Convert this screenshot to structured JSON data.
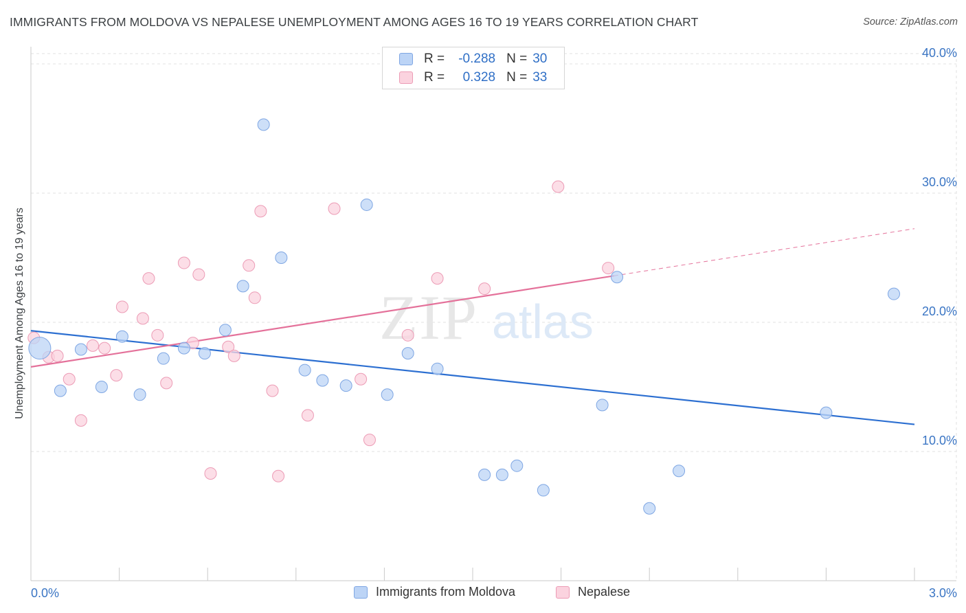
{
  "title": "IMMIGRANTS FROM MOLDOVA VS NEPALESE UNEMPLOYMENT AMONG AGES 16 TO 19 YEARS CORRELATION CHART",
  "source": "Source: ZipAtlas.com",
  "watermark": {
    "zip": "ZIP",
    "atlas": "atlas"
  },
  "legend": {
    "rows": [
      {
        "r_label": "R =",
        "r_value": "-0.288",
        "n_label": "N =",
        "n_value": "30"
      },
      {
        "r_label": "R =",
        "r_value": "0.328",
        "n_label": "N =",
        "n_value": "33"
      }
    ]
  },
  "colors": {
    "blue_fill": "#bcd4f6",
    "blue_stroke": "#7ea6e3",
    "blue_line": "#2c6fd1",
    "pink_fill": "#fbd3df",
    "pink_stroke": "#ec9bb5",
    "pink_line": "#e4719a",
    "grid": "#e2e2e2",
    "tick_text": "#3a75c4"
  },
  "chart_data": {
    "type": "scatter",
    "title": "IMMIGRANTS FROM MOLDOVA VS NEPALESE UNEMPLOYMENT AMONG AGES 16 TO 19 YEARS CORRELATION CHART",
    "xlabel": "",
    "ylabel": "Unemployment Among Ages 16 to 19 years",
    "xlim": [
      0,
      3.0
    ],
    "ylim": [
      0,
      40.8
    ],
    "x_tick_labels": [
      "0.0%",
      "3.0%"
    ],
    "y_ticks": [
      10,
      20,
      30,
      40
    ],
    "y_tick_labels": [
      "10.0%",
      "20.0%",
      "30.0%",
      "40.0%"
    ],
    "grid": true,
    "legend_position": "top-center and bottom",
    "series": [
      {
        "name": "Immigrants from Moldova",
        "points": [
          [
            0.03,
            18.0
          ],
          [
            0.1,
            14.7
          ],
          [
            0.17,
            17.9
          ],
          [
            0.24,
            15.0
          ],
          [
            0.31,
            18.9
          ],
          [
            0.37,
            14.4
          ],
          [
            0.45,
            17.2
          ],
          [
            0.52,
            18.0
          ],
          [
            0.59,
            17.6
          ],
          [
            0.66,
            19.4
          ],
          [
            0.72,
            22.8
          ],
          [
            0.79,
            35.3
          ],
          [
            0.85,
            25.0
          ],
          [
            0.93,
            16.3
          ],
          [
            0.99,
            15.5
          ],
          [
            1.07,
            15.1
          ],
          [
            1.14,
            29.1
          ],
          [
            1.21,
            14.4
          ],
          [
            1.28,
            17.6
          ],
          [
            1.38,
            16.4
          ],
          [
            1.54,
            8.2
          ],
          [
            1.6,
            8.2
          ],
          [
            1.65,
            8.9
          ],
          [
            1.74,
            7.0
          ],
          [
            1.94,
            13.6
          ],
          [
            1.99,
            23.5
          ],
          [
            2.1,
            5.6
          ],
          [
            2.2,
            8.5
          ],
          [
            2.7,
            13.0
          ],
          [
            2.93,
            22.2
          ]
        ],
        "trend": {
          "x": [
            0.0,
            3.0
          ],
          "y": [
            19.35,
            12.1
          ]
        }
      },
      {
        "name": "Nepalese",
        "points": [
          [
            0.01,
            18.8
          ],
          [
            0.06,
            17.3
          ],
          [
            0.09,
            17.4
          ],
          [
            0.13,
            15.6
          ],
          [
            0.17,
            12.4
          ],
          [
            0.21,
            18.2
          ],
          [
            0.25,
            18.0
          ],
          [
            0.29,
            15.9
          ],
          [
            0.31,
            21.2
          ],
          [
            0.38,
            20.3
          ],
          [
            0.4,
            23.4
          ],
          [
            0.43,
            19.0
          ],
          [
            0.46,
            15.3
          ],
          [
            0.52,
            24.6
          ],
          [
            0.55,
            18.4
          ],
          [
            0.57,
            23.7
          ],
          [
            0.61,
            8.3
          ],
          [
            0.67,
            18.1
          ],
          [
            0.69,
            17.4
          ],
          [
            0.74,
            24.4
          ],
          [
            0.76,
            21.9
          ],
          [
            0.78,
            28.6
          ],
          [
            0.82,
            14.7
          ],
          [
            0.84,
            8.1
          ],
          [
            0.94,
            12.8
          ],
          [
            1.03,
            28.8
          ],
          [
            1.12,
            15.6
          ],
          [
            1.15,
            10.9
          ],
          [
            1.28,
            19.0
          ],
          [
            1.38,
            23.4
          ],
          [
            1.54,
            22.6
          ],
          [
            1.79,
            30.5
          ],
          [
            1.96,
            24.2
          ]
        ],
        "trend": {
          "x": [
            0.0,
            1.98
          ],
          "y": [
            16.55,
            23.6
          ]
        },
        "trend_extension": {
          "x": [
            1.98,
            3.0
          ],
          "y": [
            23.6,
            27.25
          ]
        }
      }
    ]
  },
  "bottom_legend": [
    {
      "label": "Immigrants from Moldova",
      "color": "blue"
    },
    {
      "label": "Nepalese",
      "color": "pink"
    }
  ]
}
